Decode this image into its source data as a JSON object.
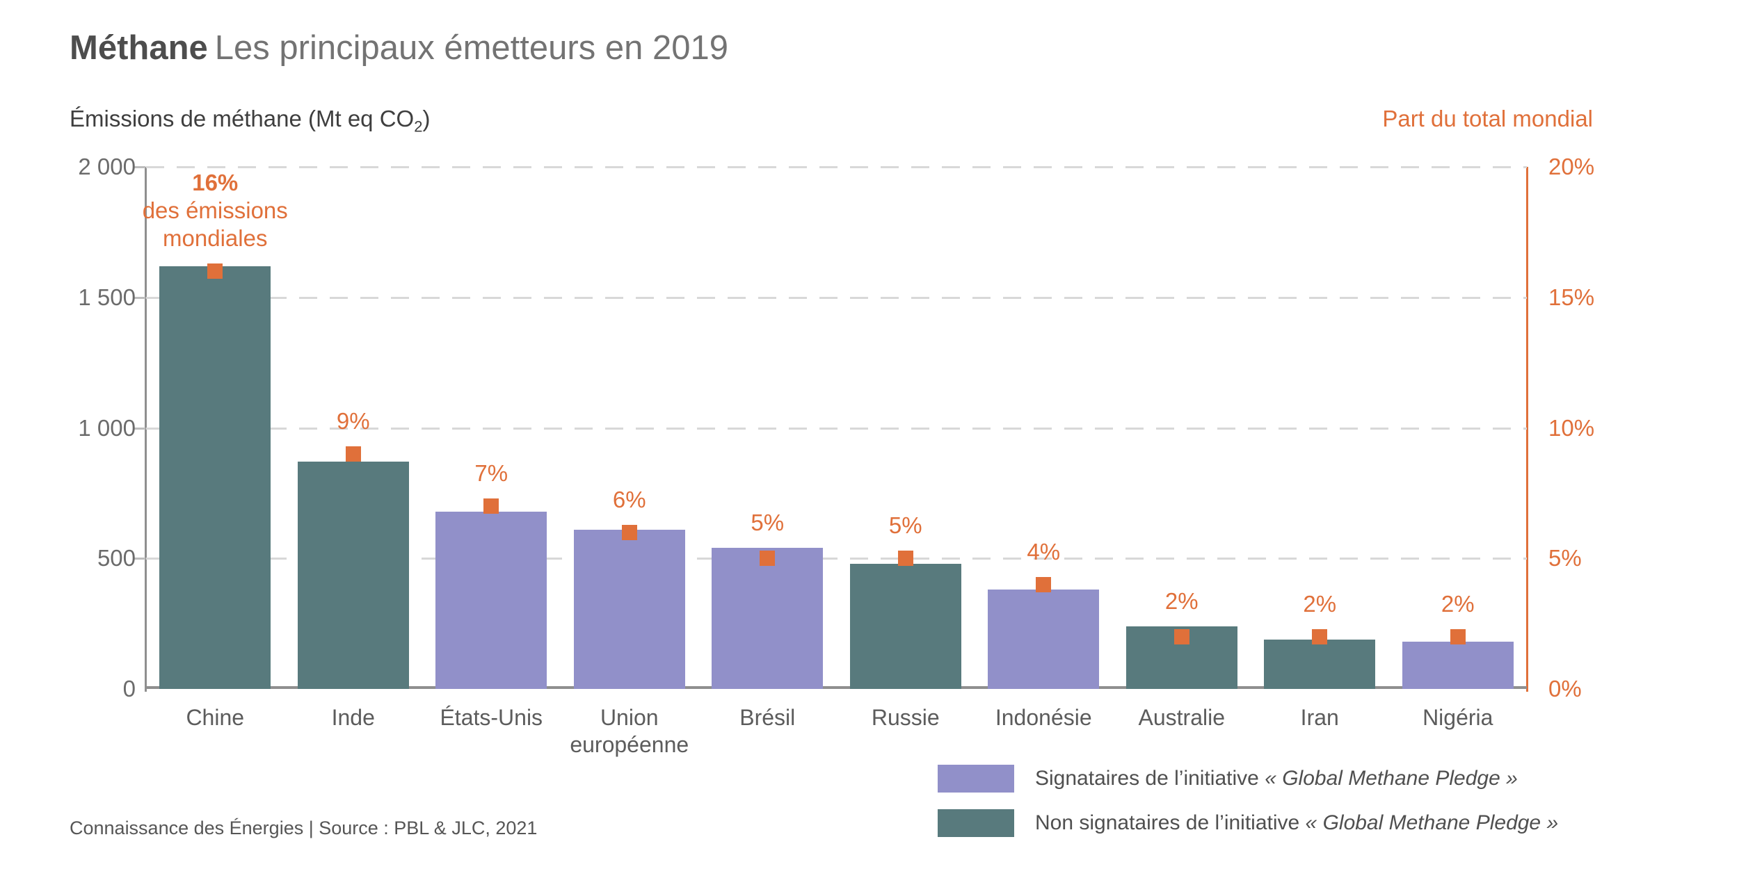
{
  "title": {
    "brand": "Méthane",
    "subtitle": "Les principaux émetteurs en 2019"
  },
  "axes": {
    "left_title": {
      "pre": "Émissions de méthane (Mt eq CO",
      "sub": "2",
      "post": ")"
    },
    "right_title": "Part du total mondial",
    "left_ticks": [
      {
        "label": "2 000",
        "value": 2000
      },
      {
        "label": "1 500",
        "value": 1500
      },
      {
        "label": "1 000",
        "value": 1000
      },
      {
        "label": "500",
        "value": 500
      },
      {
        "label": "0",
        "value": 0
      }
    ],
    "right_ticks": [
      {
        "label": "20%",
        "value": 20
      },
      {
        "label": "15%",
        "value": 15
      },
      {
        "label": "10%",
        "value": 10
      },
      {
        "label": "5%",
        "value": 5
      },
      {
        "label": "0%",
        "value": 0
      }
    ]
  },
  "chart_data": {
    "type": "bar",
    "title": "Méthane — Les principaux émetteurs en 2019",
    "categories": [
      "Chine",
      "Inde",
      "États-Unis",
      "Union\neuropéenne",
      "Brésil",
      "Russie",
      "Indonésie",
      "Australie",
      "Iran",
      "Nigéria"
    ],
    "series": [
      {
        "name": "Émissions de méthane",
        "unit": "Mt eq CO2",
        "axis": "left",
        "values": [
          1620,
          870,
          680,
          610,
          540,
          480,
          380,
          240,
          190,
          180
        ]
      },
      {
        "name": "Part du total mondial",
        "unit": "%",
        "axis": "right",
        "values": [
          16,
          9,
          7,
          6,
          5,
          5,
          4,
          2,
          2,
          2
        ]
      }
    ],
    "percent_labels": [
      "16%",
      "9%",
      "7%",
      "6%",
      "5%",
      "5%",
      "4%",
      "2%",
      "2%",
      "2%"
    ],
    "first_bar_annotation_lines": [
      "des émissions",
      "mondiales"
    ],
    "signatory_pledge": [
      false,
      false,
      true,
      true,
      true,
      false,
      true,
      false,
      false,
      true
    ],
    "ylim_left": [
      0,
      2000
    ],
    "ylim_right": [
      0,
      20
    ],
    "grid": "dashed-horizontal",
    "legend_position": "bottom-right"
  },
  "legend": {
    "items": [
      {
        "key": "signatory",
        "prefix": "Signataires de l’initiative ",
        "italic": "« Global Methane Pledge »"
      },
      {
        "key": "non_signatory",
        "prefix": "Non signataires de l’initiative ",
        "italic": "« Global Methane Pledge »"
      }
    ]
  },
  "colors": {
    "signatory": "#9190c9",
    "non_signatory": "#587a7d",
    "accent": "#e0703a",
    "grid": "#d8d8d8",
    "axis_gray": "#8f8f8f"
  },
  "source": "Connaissance des Énergies | Source : PBL & JLC, 2021"
}
